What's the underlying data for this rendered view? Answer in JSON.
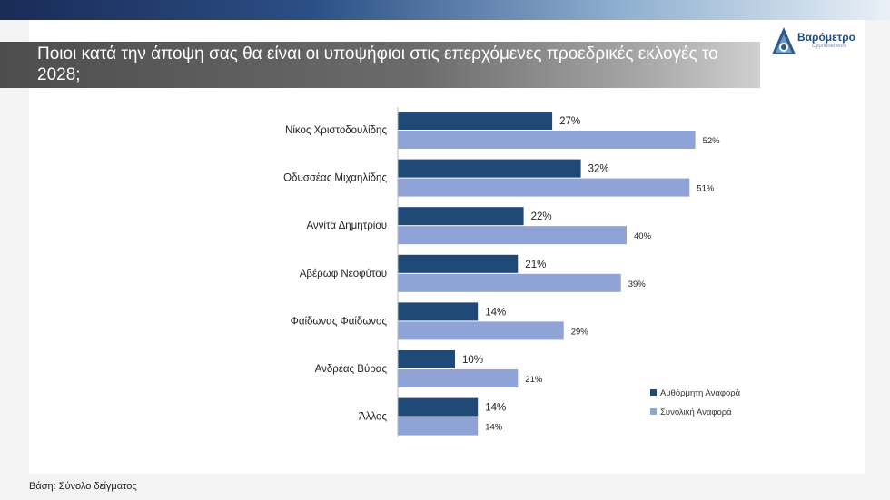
{
  "title": "Ποιοι κατά την άποψη σας θα είναι οι υποψήφιοι στις επερχόμενες προεδρικές εκλογές το 2028;",
  "logo": {
    "name": "Βαρόμετρο",
    "sub": "Cyprionetwork"
  },
  "footer": "Βάση: Σύνολο δείγματος",
  "colors": {
    "series1": "#1f4a78",
    "series2": "#8fa3d6"
  },
  "chart_data": {
    "type": "bar",
    "orientation": "horizontal",
    "categories": [
      "Νίκος Χριστοδουλίδης",
      "Οδυσσέας Μιχαηλίδης",
      "Αννίτα Δημητρίου",
      "Αβέρωφ Νεοφύτου",
      "Φαίδωνας Φαίδωνος",
      "Ανδρέας Βύρας",
      "Άλλος"
    ],
    "series": [
      {
        "name": "Αυθόρμητη Αναφορά",
        "values": [
          27,
          32,
          22,
          21,
          14,
          10,
          14
        ],
        "labels": [
          "27%",
          "32%",
          "22%",
          "21%",
          "14%",
          "10%",
          "14%"
        ]
      },
      {
        "name": "Συνολική Αναφορά",
        "values": [
          52,
          51,
          40,
          39,
          29,
          21,
          14
        ],
        "labels": [
          "52%",
          "51%",
          "40%",
          "39%",
          "29%",
          "21%",
          "14%"
        ]
      }
    ],
    "xlim": [
      0,
      60
    ],
    "legend_position": "bottom-right",
    "grid": false
  }
}
